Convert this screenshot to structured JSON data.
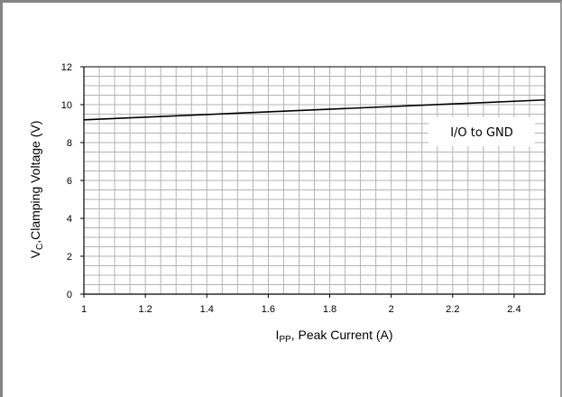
{
  "chart_data": {
    "type": "line",
    "x": [
      1.0,
      2.5
    ],
    "series": [
      {
        "values": [
          9.2,
          10.25
        ]
      }
    ],
    "xlim": [
      1,
      2.5
    ],
    "ylim": [
      0,
      12
    ],
    "x_ticks": [
      "1",
      "1.2",
      "1.4",
      "1.6",
      "1.8",
      "2",
      "2.2",
      "2.4"
    ],
    "y_ticks": [
      "0",
      "2",
      "4",
      "6",
      "8",
      "10",
      "12"
    ],
    "xlabel_main": "I",
    "xlabel_sub": "PP",
    "xlabel_rest": ", Peak Current (A)",
    "ylabel_main": "V",
    "ylabel_sub": "C",
    "ylabel_rest": ",Clamping Voltage (V)",
    "annotation": "I/O to GND",
    "grid": true,
    "line_color": "#000000",
    "grid_color": "#b3b3b3"
  }
}
